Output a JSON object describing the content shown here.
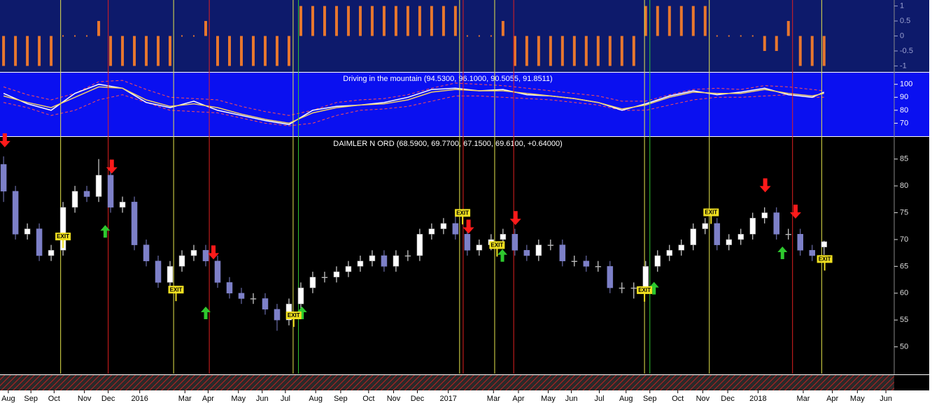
{
  "chart_data": [
    {
      "type": "bar",
      "color": "#e8772e",
      "ylim": [
        -1.2,
        1.2
      ],
      "yticks": [
        -1,
        -0.5,
        0,
        0.5,
        1
      ],
      "xlim": [
        -0.6,
        149.8
      ],
      "x": [
        0,
        2,
        4,
        6,
        8,
        10,
        12,
        14,
        16,
        18,
        20,
        22,
        24,
        26,
        28,
        30,
        32,
        34,
        36,
        38,
        40,
        42,
        44,
        46,
        48,
        50,
        52,
        54,
        56,
        58,
        60,
        62,
        64,
        66,
        68,
        70,
        72,
        74,
        76,
        78,
        80,
        82,
        84,
        86,
        88,
        90,
        92,
        94,
        96,
        98,
        100,
        102,
        104,
        106,
        108,
        110,
        112,
        114,
        116,
        118,
        120,
        122,
        124,
        126,
        128,
        130,
        132,
        134,
        136,
        138
      ],
      "values": [
        -1,
        -1,
        -1,
        -1,
        -1,
        0,
        0,
        0,
        0.5,
        -1,
        -1,
        -1,
        -1,
        -1,
        -1,
        0,
        0,
        0.5,
        -1,
        -1,
        -1,
        -1,
        -1,
        -1,
        -1,
        1,
        1,
        1,
        1,
        1,
        1,
        1,
        1,
        1,
        1,
        1,
        1,
        1,
        1,
        0,
        0,
        0,
        0.5,
        -1,
        -1,
        -1,
        -1,
        -1,
        -1,
        -1,
        -1,
        -1,
        -1,
        -1,
        1,
        1,
        1,
        1,
        1,
        1,
        0,
        0,
        0,
        0,
        -0.5,
        -0.5,
        0.5,
        -1,
        -1,
        -1
      ]
    },
    {
      "type": "line",
      "title": "Driving in the mountain (94.5300, 96.1000, 90.5055, 91.8511)",
      "ylim": [
        60,
        109
      ],
      "yticks": [
        70,
        80,
        90,
        100
      ],
      "xlim": [
        -0.6,
        149.8
      ],
      "x": [
        0,
        4,
        8,
        12,
        16,
        20,
        24,
        28,
        32,
        36,
        40,
        44,
        48,
        52,
        56,
        60,
        64,
        68,
        72,
        76,
        80,
        84,
        88,
        92,
        96,
        100,
        104,
        108,
        112,
        116,
        120,
        124,
        128,
        132,
        136,
        138
      ],
      "series": [
        {
          "color": "#ff5050",
          "dashed": true,
          "values": [
            98,
            92,
            88,
            93,
            102,
            103,
            96,
            90,
            89,
            88,
            83,
            79,
            76,
            80,
            86,
            88,
            89,
            92,
            97,
            101,
            100,
            99,
            97,
            95,
            93,
            91,
            87,
            87,
            92,
            96,
            97,
            96,
            99,
            98,
            96,
            95
          ]
        },
        {
          "color": "#ff5050",
          "dashed": true,
          "values": [
            86,
            82,
            76,
            80,
            88,
            92,
            86,
            80,
            79,
            78,
            74,
            70,
            68,
            70,
            76,
            80,
            81,
            83,
            87,
            91,
            91,
            90,
            89,
            88,
            86,
            84,
            80,
            80,
            84,
            88,
            90,
            90,
            91,
            92,
            90,
            90
          ]
        },
        {
          "color": "#ffffff",
          "dashed": false,
          "values": [
            93,
            85,
            80,
            93,
            100,
            97,
            86,
            82,
            87,
            80,
            76,
            72,
            69,
            80,
            83,
            84,
            86,
            90,
            96,
            97,
            95,
            96,
            92,
            91,
            89,
            86,
            80,
            85,
            91,
            95,
            92,
            94,
            97,
            92,
            90,
            94
          ]
        },
        {
          "color": "#f2cf6a",
          "dashed": false,
          "values": [
            91,
            86,
            82,
            90,
            98,
            97,
            88,
            83,
            85,
            82,
            77,
            73,
            70,
            78,
            82,
            84,
            85,
            88,
            94,
            96,
            95,
            95,
            93,
            91,
            89,
            86,
            81,
            84,
            90,
            94,
            93,
            93,
            96,
            93,
            91,
            93
          ]
        }
      ]
    },
    {
      "type": "candlestick",
      "title": "DAIMLER N ORD (68.5900, 69.7700, 67.1500, 69.6100, +0.64000)",
      "ylim": [
        45,
        89
      ],
      "yticks": [
        50,
        55,
        60,
        65,
        70,
        75,
        80,
        85
      ],
      "xlim": [
        -0.6,
        149.8
      ],
      "up_color": "#ffffff",
      "down_color": "#7d80c8",
      "xticks": [
        {
          "value": 0.8,
          "label": "Aug"
        },
        {
          "value": 4.6,
          "label": "Sep"
        },
        {
          "value": 8.5,
          "label": "Oct"
        },
        {
          "value": 13.6,
          "label": "Nov"
        },
        {
          "value": 17.6,
          "label": "Dec"
        },
        {
          "value": 22.9,
          "label": "2016"
        },
        {
          "value": 30.5,
          "label": "Mar"
        },
        {
          "value": 34.4,
          "label": "Apr"
        },
        {
          "value": 39.5,
          "label": "May"
        },
        {
          "value": 43.5,
          "label": "Jun"
        },
        {
          "value": 47.4,
          "label": "Jul"
        },
        {
          "value": 52.5,
          "label": "Aug"
        },
        {
          "value": 56.7,
          "label": "Sep"
        },
        {
          "value": 61.4,
          "label": "Oct"
        },
        {
          "value": 65.6,
          "label": "Nov"
        },
        {
          "value": 69.6,
          "label": "Dec"
        },
        {
          "value": 74.8,
          "label": "2017"
        },
        {
          "value": 82.4,
          "label": "Mar"
        },
        {
          "value": 86.6,
          "label": "Apr"
        },
        {
          "value": 91.6,
          "label": "May"
        },
        {
          "value": 95.5,
          "label": "Jun"
        },
        {
          "value": 100.2,
          "label": "Jul"
        },
        {
          "value": 104.7,
          "label": "Aug"
        },
        {
          "value": 108.7,
          "label": "Sep"
        },
        {
          "value": 113.4,
          "label": "Oct"
        },
        {
          "value": 117.6,
          "label": "Nov"
        },
        {
          "value": 121.8,
          "label": "Dec"
        },
        {
          "value": 126.9,
          "label": "2018"
        },
        {
          "value": 134.5,
          "label": "Mar"
        },
        {
          "value": 139.4,
          "label": "Apr"
        },
        {
          "value": 143.6,
          "label": "May"
        },
        {
          "value": 148.4,
          "label": "Jun"
        }
      ],
      "x": [
        0,
        2,
        4,
        6,
        8,
        10,
        12,
        14,
        16,
        18,
        20,
        22,
        24,
        26,
        28,
        30,
        32,
        34,
        36,
        38,
        40,
        42,
        44,
        46,
        48,
        50,
        52,
        54,
        56,
        58,
        60,
        62,
        64,
        66,
        68,
        70,
        72,
        74,
        76,
        78,
        80,
        82,
        84,
        86,
        88,
        90,
        92,
        94,
        96,
        98,
        100,
        102,
        104,
        106,
        108,
        110,
        112,
        114,
        116,
        118,
        120,
        122,
        124,
        126,
        128,
        130,
        132,
        134,
        136,
        138
      ],
      "open": [
        84,
        79,
        71,
        72,
        67,
        68,
        76,
        79,
        78,
        82,
        76,
        77,
        69,
        66,
        62,
        65,
        67,
        68,
        66,
        62,
        60,
        59,
        59,
        57,
        55,
        58,
        61,
        63,
        63,
        64,
        65,
        66,
        67,
        65,
        67,
        67,
        71,
        72,
        73,
        71,
        68,
        69,
        70,
        71,
        68,
        67,
        69,
        69,
        66,
        66,
        65,
        65,
        61,
        61,
        61,
        65,
        67,
        68,
        69,
        72,
        73,
        69,
        70,
        71,
        74,
        75,
        71,
        71,
        68,
        68.59
      ],
      "high": [
        85.5,
        80,
        73,
        73,
        69,
        77,
        80,
        80,
        85,
        83,
        78,
        78,
        70,
        67,
        66,
        68,
        69,
        69,
        67,
        63,
        61,
        60,
        60,
        58,
        59,
        62,
        64,
        64,
        65,
        66,
        67,
        68,
        68,
        68,
        68,
        72,
        73,
        74,
        75,
        72,
        70,
        71,
        72,
        72,
        69,
        70,
        70,
        70,
        67,
        67,
        66,
        66,
        62,
        62,
        66,
        68,
        69,
        70,
        73,
        74,
        74,
        71,
        72,
        75,
        76,
        76,
        72,
        72,
        69,
        69.77
      ],
      "low": [
        77,
        70,
        70,
        66,
        66,
        67,
        75,
        77,
        77,
        75,
        75,
        68,
        65,
        61,
        61,
        64,
        66,
        65,
        61,
        59,
        58,
        58,
        56,
        53,
        54,
        57,
        60,
        62,
        62,
        63,
        64,
        65,
        64,
        64,
        66,
        66,
        70,
        71,
        70,
        67,
        67,
        68,
        69,
        67,
        66,
        66,
        68,
        65,
        65,
        64,
        64,
        60,
        60,
        59,
        60,
        64,
        66,
        67,
        68,
        71,
        68,
        68,
        69,
        70,
        73,
        70,
        70,
        67,
        66,
        67.15
      ],
      "close": [
        79,
        71,
        72,
        67,
        68,
        76,
        79,
        78,
        82,
        76,
        77,
        69,
        66,
        62,
        65,
        67,
        68,
        66,
        62,
        60,
        59,
        59,
        57,
        55,
        58,
        61,
        63,
        63,
        64,
        65,
        66,
        67,
        65,
        67,
        67,
        71,
        72,
        73,
        71,
        68,
        69,
        70,
        71,
        68,
        67,
        69,
        69,
        66,
        66,
        65,
        65,
        61,
        61,
        61,
        65,
        67,
        68,
        69,
        72,
        73,
        69,
        70,
        71,
        74,
        75,
        71,
        71,
        68,
        67,
        69.61
      ],
      "reference_lines": [
        {
          "color": "#e6e64c",
          "x": [
            9.6,
            28.6,
            48.7,
            76.7,
            82.6,
            107.8,
            118.7,
            137.6
          ]
        },
        {
          "color": "#e02020",
          "x": [
            17.6,
            34.6,
            77.3,
            85.8,
            132.7
          ]
        },
        {
          "color": "#30c830",
          "x": [
            49.6,
            108.7
          ]
        }
      ],
      "sell_signals": {
        "color": "#ff1a1a",
        "x": [
          0.2,
          18.2,
          35.3,
          78.2,
          86.1,
          128.1,
          133.2
        ],
        "y": [
          87.2,
          82.3,
          66.3,
          71.1,
          72.7,
          78.8,
          73.9
        ]
      },
      "buy_signals": {
        "color": "#2ec82e",
        "x": [
          17.1,
          34,
          50.2,
          83.9,
          109.4,
          131
        ],
        "y": [
          72.7,
          57.5,
          57.5,
          68.2,
          62.1,
          68.7
        ]
      },
      "annotations": [
        {
          "text": "EXIT",
          "x": 10,
          "y": 70.5
        },
        {
          "text": "EXIT",
          "x": 29,
          "y": 60.6
        },
        {
          "text": "EXIT",
          "x": 48.8,
          "y": 55.8
        },
        {
          "text": "EXIT",
          "x": 77.2,
          "y": 74.9
        },
        {
          "text": "EXIT",
          "x": 83,
          "y": 68.9
        },
        {
          "text": "EXIT",
          "x": 107.8,
          "y": 60.5
        },
        {
          "text": "EXIT",
          "x": 119,
          "y": 75
        },
        {
          "text": "EXIT",
          "x": 138.1,
          "y": 66.3
        }
      ]
    }
  ]
}
